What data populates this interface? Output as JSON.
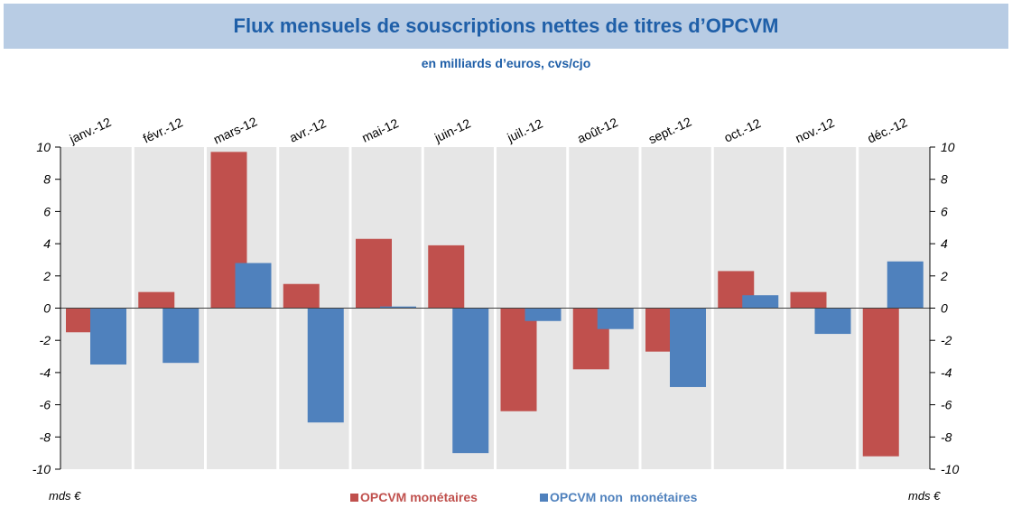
{
  "chart_data": {
    "type": "bar",
    "title": "Flux mensuels de souscriptions nettes de titres d’OPCVM",
    "subtitle": "en milliards d’euros, cvs/cjo",
    "categories": [
      "janv.-12",
      "févr.-12",
      "mars-12",
      "avr.-12",
      "mai-12",
      "juin-12",
      "juil.-12",
      "août-12",
      "sept.-12",
      "oct.-12",
      "nov.-12",
      "déc.-12"
    ],
    "series": [
      {
        "name": "OPCVM monétaires",
        "color": "#c0504d",
        "values": [
          -1.5,
          1.0,
          9.7,
          1.5,
          4.3,
          3.9,
          -6.4,
          -3.8,
          -2.7,
          2.3,
          1.0,
          -9.2
        ]
      },
      {
        "name": "OPCVM non  monétaires",
        "color": "#4f81bd",
        "values": [
          -3.5,
          -3.4,
          2.8,
          -7.1,
          0.1,
          -9.0,
          -0.8,
          -1.3,
          -4.9,
          0.8,
          -1.6,
          2.9
        ]
      }
    ],
    "ylim": [
      -10,
      10
    ],
    "yticks": [
      10,
      8,
      6,
      4,
      2,
      0,
      -2,
      -4,
      -6,
      -8,
      -10
    ],
    "ylabel_left": "mds €",
    "ylabel_right": "mds €",
    "plot_background": "#e6e6e6",
    "title_color": "#1f5fa8"
  }
}
